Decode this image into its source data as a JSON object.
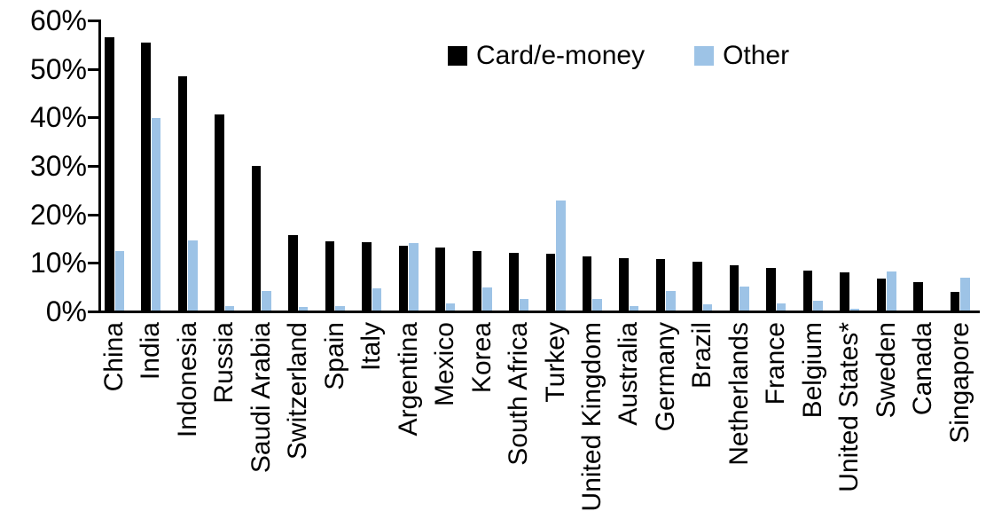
{
  "chart_data": {
    "type": "bar",
    "title": "",
    "xlabel": "",
    "ylabel": "",
    "ylim": [
      0,
      60
    ],
    "ytick_labels": [
      "0%",
      "10%",
      "20%",
      "30%",
      "40%",
      "50%",
      "60%"
    ],
    "ytick_values": [
      0,
      10,
      20,
      30,
      40,
      50,
      60
    ],
    "grid": false,
    "legend_position": "top-center",
    "categories": [
      "China",
      "India",
      "Indonesia",
      "Russia",
      "Saudi Arabia",
      "Switzerland",
      "Spain",
      "Italy",
      "Argentina",
      "Mexico",
      "Korea",
      "South Africa",
      "Turkey",
      "United Kingdom",
      "Australia",
      "Germany",
      "Brazil",
      "Netherlands",
      "France",
      "Belgium",
      "United States*",
      "Sweden",
      "Canada",
      "Singapore"
    ],
    "series": [
      {
        "name": "Card/e-money",
        "color": "#000000",
        "values": [
          56.3,
          55.2,
          48.3,
          40.5,
          29.8,
          15.6,
          14.2,
          14.1,
          13.4,
          12.9,
          12.2,
          11.8,
          11.7,
          11.1,
          10.8,
          10.6,
          10.0,
          9.3,
          8.7,
          8.2,
          7.9,
          6.5,
          5.9,
          3.8
        ]
      },
      {
        "name": "Other",
        "color": "#9DC3E6",
        "values": [
          12.3,
          39.7,
          14.5,
          1.0,
          4.0,
          0.8,
          1.0,
          4.6,
          13.9,
          1.4,
          4.7,
          2.4,
          22.6,
          2.3,
          1.0,
          4.0,
          1.2,
          4.9,
          1.5,
          2.0,
          0.3,
          8.1,
          0.0,
          6.7
        ]
      }
    ]
  }
}
